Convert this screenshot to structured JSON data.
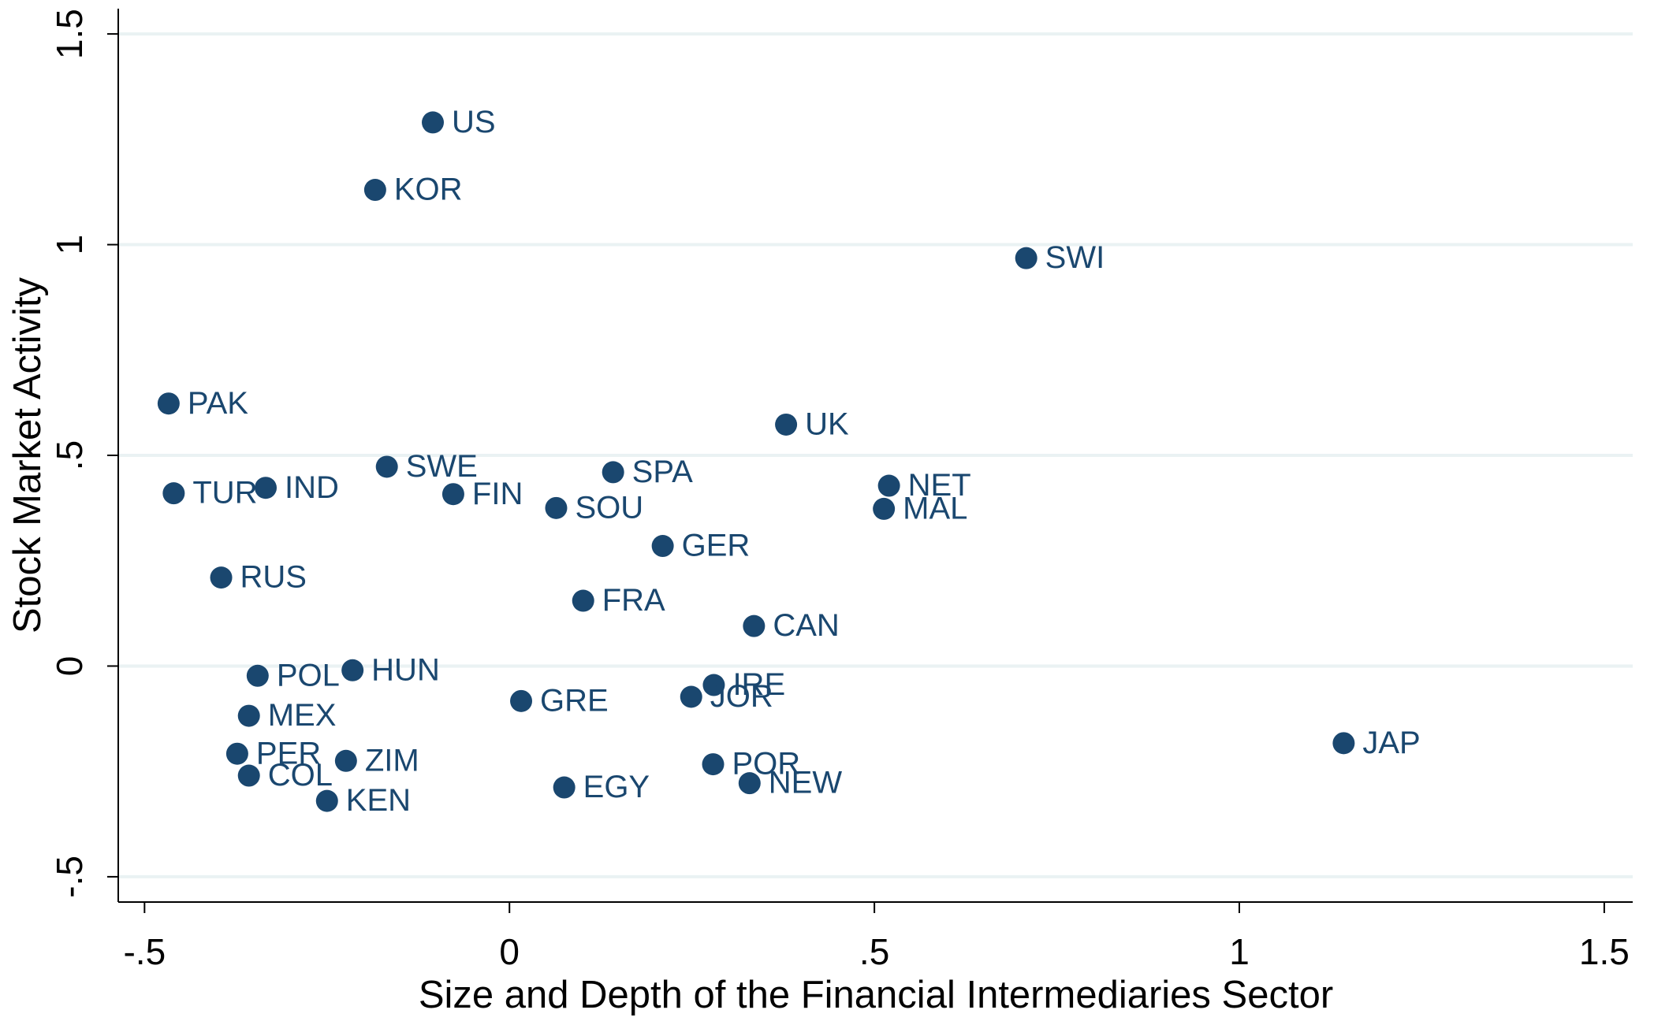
{
  "chart_data": {
    "type": "scatter",
    "x_label": "Size and Depth of the Financial Intermediaries Sector",
    "y_label": "Stock Market Activity",
    "color": "#1a476f",
    "grid": true,
    "xlim": [
      -0.536,
      1.539
    ],
    "ylim": [
      -0.56,
      1.56
    ],
    "xticks": [
      {
        "value": -0.5,
        "label": "-.5"
      },
      0,
      {
        "value": 0.5,
        "label": ".5"
      },
      1,
      1.5
    ],
    "yticks": [
      {
        "value": -0.5,
        "label": "-.5"
      },
      0,
      {
        "value": 0.5,
        "label": ".5"
      },
      1,
      1.5
    ],
    "labels": [
      "US",
      "KOR",
      "SWI",
      "PAK",
      "UK",
      "SWE",
      "SPA",
      "IND",
      "TUR",
      "FIN",
      "NET",
      "SOU",
      "MAL",
      "GER",
      "RUS",
      "FRA",
      "CAN",
      "HUN",
      "POL",
      "IRE",
      "JOR",
      "GRE",
      "MEX",
      "JAP",
      "PER",
      "ZIM",
      "POR",
      "COL",
      "NEW",
      "EGY",
      "KEN"
    ],
    "x": [
      -0.105,
      -0.184,
      0.708,
      -0.467,
      0.379,
      -0.168,
      0.142,
      -0.334,
      -0.46,
      -0.077,
      0.52,
      0.064,
      0.513,
      0.21,
      -0.395,
      0.101,
      0.335,
      -0.215,
      -0.345,
      0.28,
      0.249,
      0.016,
      -0.357,
      1.143,
      -0.373,
      -0.224,
      0.279,
      -0.357,
      0.329,
      0.075,
      -0.25
    ],
    "values": [
      1.29,
      1.13,
      0.968,
      0.623,
      0.573,
      0.473,
      0.46,
      0.423,
      0.41,
      0.408,
      0.428,
      0.375,
      0.373,
      0.285,
      0.21,
      0.155,
      0.095,
      -0.01,
      -0.023,
      -0.045,
      -0.073,
      -0.083,
      -0.118,
      -0.183,
      -0.208,
      -0.225,
      -0.233,
      -0.26,
      -0.278,
      -0.288,
      -0.32
    ]
  }
}
